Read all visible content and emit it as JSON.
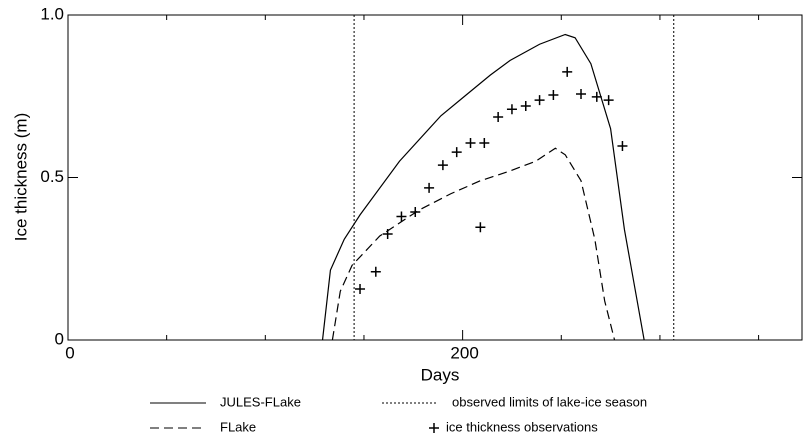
{
  "chart_data": {
    "type": "line",
    "xlabel": "Days",
    "ylabel": "Ice thickness (m)",
    "xlim": [
      0,
      372
    ],
    "ylim": [
      0,
      1
    ],
    "xticks": [
      0,
      200
    ],
    "xminorticks": [
      50,
      100,
      150,
      250,
      300,
      350
    ],
    "yticks": [
      0,
      0.5,
      {
        "value": 1,
        "label": "1.0"
      }
    ],
    "series": [
      {
        "name": "JULES-FLake",
        "color": "#000000",
        "style": "solid",
        "x": [
          129,
          133,
          140,
          148,
          168,
          189,
          201,
          214,
          224,
          239,
          252,
          257,
          265,
          275,
          282,
          292
        ],
        "values": [
          0,
          0.215,
          0.31,
          0.385,
          0.55,
          0.69,
          0.75,
          0.815,
          0.86,
          0.91,
          0.94,
          0.93,
          0.85,
          0.65,
          0.34,
          0
        ]
      },
      {
        "name": "FLake",
        "color": "#000000",
        "style": "dashed",
        "x": [
          134,
          138,
          144,
          158,
          178,
          194,
          209,
          224,
          237,
          247,
          252,
          260,
          267,
          272,
          277
        ],
        "values": [
          0,
          0.15,
          0.23,
          0.32,
          0.4,
          0.45,
          0.49,
          0.52,
          0.55,
          0.59,
          0.57,
          0.49,
          0.31,
          0.12,
          0
        ]
      },
      {
        "name": "ice thickness observations",
        "color": "#000000",
        "style": "plus",
        "x": [
          148,
          156,
          162,
          169,
          176,
          183,
          190,
          197,
          204,
          211,
          209,
          218,
          225,
          232,
          239,
          246,
          253,
          260,
          268,
          274,
          281
        ],
        "values": [
          0.157,
          0.21,
          0.326,
          0.38,
          0.394,
          0.468,
          0.538,
          0.578,
          0.606,
          0.606,
          0.347,
          0.686,
          0.71,
          0.72,
          0.738,
          0.754,
          0.825,
          0.757,
          0.748,
          0.738,
          0.597
        ]
      }
    ],
    "vlines": {
      "name": "observed limits of lake-ice season",
      "color": "#000000",
      "style": "dotted",
      "x": [
        145,
        307
      ]
    }
  }
}
